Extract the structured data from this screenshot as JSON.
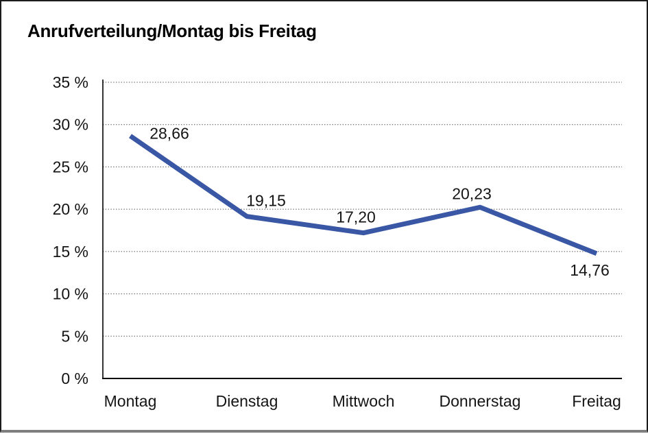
{
  "chart_data": {
    "type": "line",
    "title": "Anrufverteilung/Montag bis Freitag",
    "categories": [
      "Montag",
      "Dienstag",
      "Mittwoch",
      "Donnerstag",
      "Freitag"
    ],
    "values": [
      28.66,
      19.15,
      17.2,
      20.23,
      14.76
    ],
    "point_labels": [
      "28,66",
      "19,15",
      "17,20",
      "20,23",
      "14,76"
    ],
    "y_tick_labels": [
      "0 %",
      "5 %",
      "10 %",
      "15 %",
      "20 %",
      "25 %",
      "30 %",
      "35 %"
    ],
    "ylim": [
      0,
      35
    ],
    "y_tick_step": 5,
    "grid": "horizontal-dotted",
    "legend": "none",
    "line_color": "#3A57A5",
    "grid_color": "#4d4d4d",
    "axis_color": "#000000",
    "text_color": "#141414"
  }
}
